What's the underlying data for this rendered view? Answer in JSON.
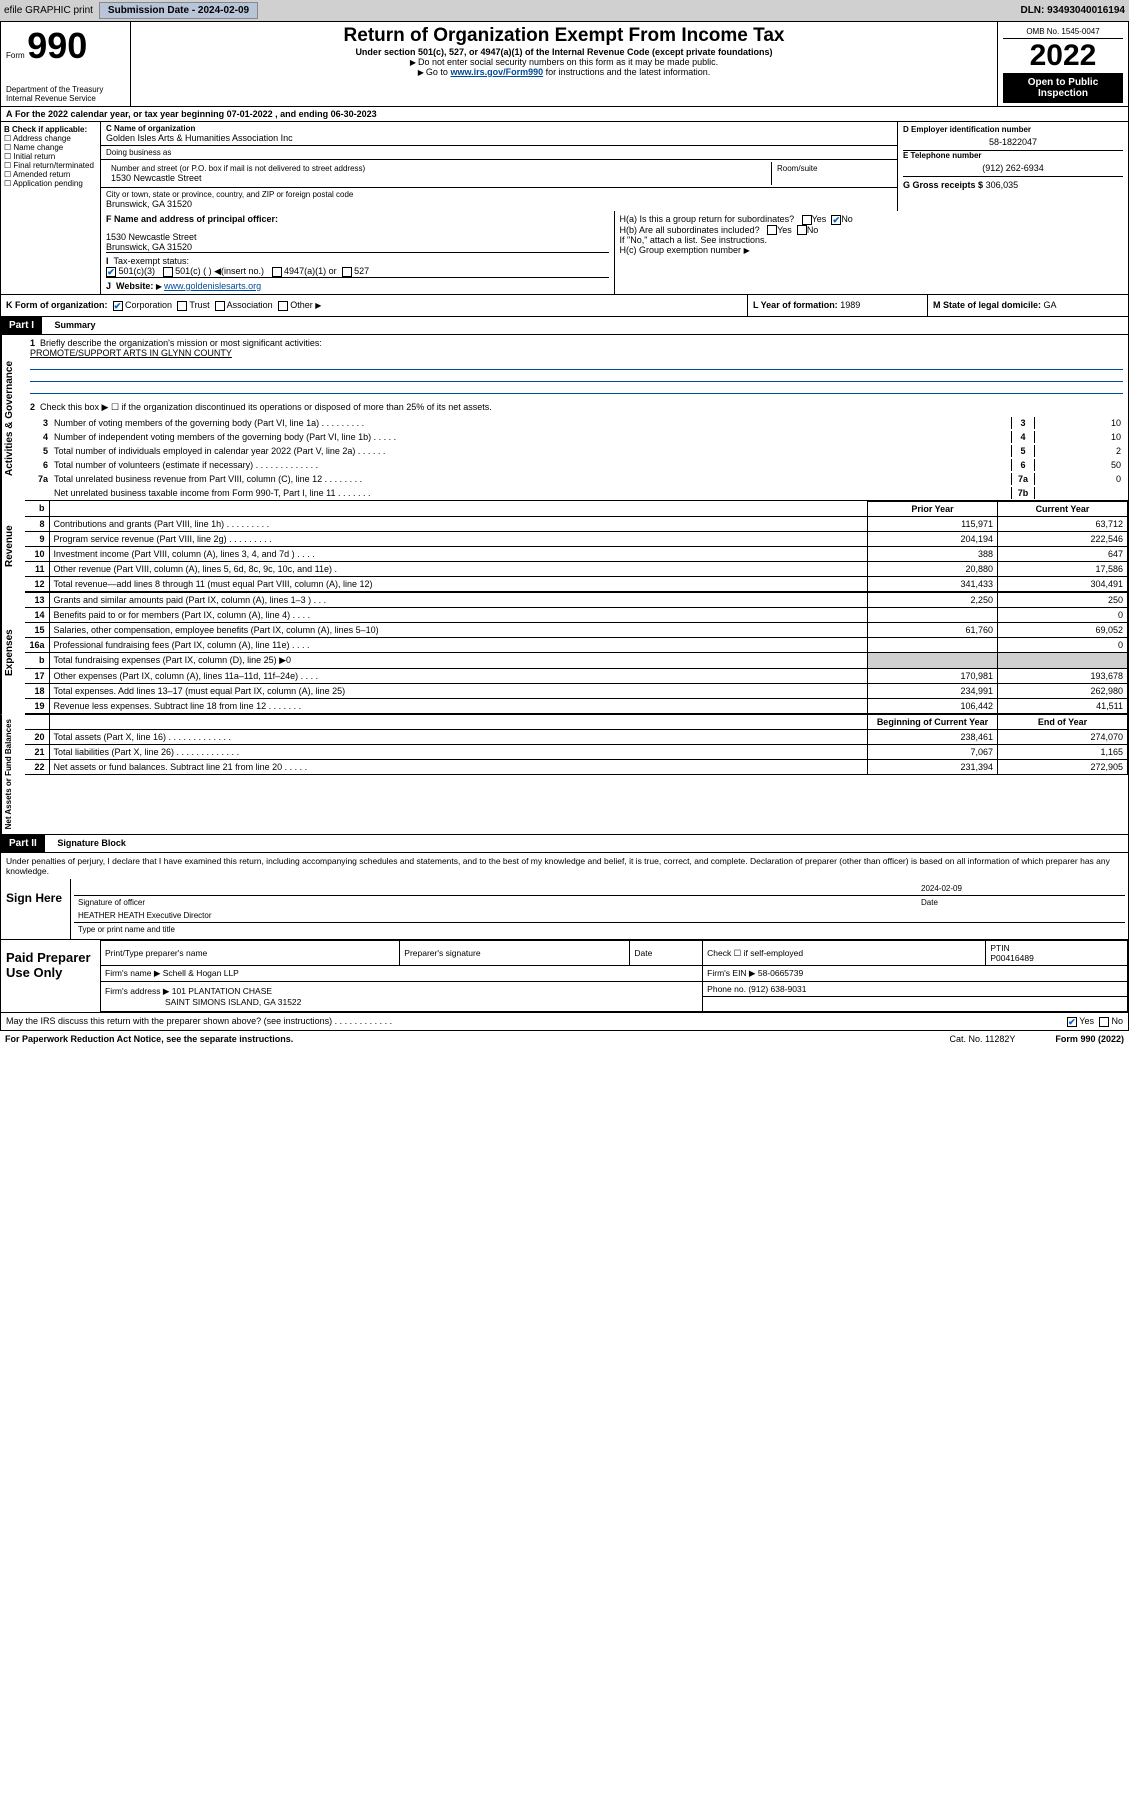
{
  "topbar": {
    "efile_label": "efile GRAPHIC print",
    "submission_label": "Submission Date - 2024-02-09",
    "dln": "DLN: 93493040016194"
  },
  "header": {
    "form_prefix": "Form",
    "form_number": "990",
    "dept": "Department of the Treasury",
    "irs": "Internal Revenue Service",
    "title": "Return of Organization Exempt From Income Tax",
    "subtitle": "Under section 501(c), 527, or 4947(a)(1) of the Internal Revenue Code (except private foundations)",
    "note1": "Do not enter social security numbers on this form as it may be made public.",
    "note2_pre": "Go to ",
    "note2_link": "www.irs.gov/Form990",
    "note2_post": " for instructions and the latest information.",
    "omb": "OMB No. 1545-0047",
    "year": "2022",
    "open_public": "Open to Public Inspection"
  },
  "row_a": "For the 2022 calendar year, or tax year beginning 07-01-2022   , and ending 06-30-2023",
  "col_b": {
    "header": "B Check if applicable:",
    "opts": [
      "Address change",
      "Name change",
      "Initial return",
      "Final return/terminated",
      "Amended return",
      "Application pending"
    ]
  },
  "col_c": {
    "name_label": "C Name of organization",
    "name": "Golden Isles Arts & Humanities Association Inc",
    "dba_label": "Doing business as",
    "dba": "",
    "addr_label": "Number and street (or P.O. box if mail is not delivered to street address)",
    "room_label": "Room/suite",
    "addr": "1530 Newcastle Street",
    "city_label": "City or town, state or province, country, and ZIP or foreign postal code",
    "city": "Brunswick, GA  31520"
  },
  "col_d": {
    "ein_label": "D Employer identification number",
    "ein": "58-1822047",
    "phone_label": "E Telephone number",
    "phone": "(912) 262-6934",
    "gross_label": "G Gross receipts $",
    "gross": "306,035"
  },
  "section_f": {
    "f_label": "F Name and address of principal officer:",
    "f_addr1": "1530 Newcastle Street",
    "f_addr2": "Brunswick, GA  31520",
    "i_label": "Tax-exempt status:",
    "i_501c3": "501(c)(3)",
    "i_501c": "501(c) (   )",
    "i_insert": "(insert no.)",
    "i_4947": "4947(a)(1) or",
    "i_527": "527",
    "j_label": "Website:",
    "j_val": "www.goldenislesarts.org",
    "ha_label": "H(a)  Is this a group return for subordinates?",
    "hb_label": "H(b)  Are all subordinates included?",
    "hb_note": "If \"No,\" attach a list. See instructions.",
    "hc_label": "H(c)  Group exemption number",
    "yes": "Yes",
    "no": "No"
  },
  "row_k": {
    "k_label": "K Form of organization:",
    "k_corp": "Corporation",
    "k_trust": "Trust",
    "k_assoc": "Association",
    "k_other": "Other",
    "l_label": "L Year of formation:",
    "l_val": "1989",
    "m_label": "M State of legal domicile:",
    "m_val": "GA"
  },
  "part1": {
    "header": "Part I",
    "title": "Summary",
    "briefly_num": "1",
    "briefly": "Briefly describe the organization's mission or most significant activities:",
    "mission": "PROMOTE/SUPPORT ARTS IN GLYNN COUNTY",
    "line2_num": "2",
    "line2": "Check this box ▶ ☐  if the organization discontinued its operations or disposed of more than 25% of its net assets.",
    "gov_lines": [
      {
        "n": "3",
        "t": "Number of voting members of the governing body (Part VI, line 1a)   .    .    .    .    .    .    .    .    .",
        "b": "3",
        "v": "10"
      },
      {
        "n": "4",
        "t": "Number of independent voting members of the governing body (Part VI, line 1b)   .    .    .    .    .",
        "b": "4",
        "v": "10"
      },
      {
        "n": "5",
        "t": "Total number of individuals employed in calendar year 2022 (Part V, line 2a)   .    .    .    .    .    .",
        "b": "5",
        "v": "2"
      },
      {
        "n": "6",
        "t": "Total number of volunteers (estimate if necessary)   .    .    .    .    .    .    .    .    .    .    .    .    .",
        "b": "6",
        "v": "50"
      },
      {
        "n": "7a",
        "t": "Total unrelated business revenue from Part VIII, column (C), line 12   .    .    .    .    .    .    .    .",
        "b": "7a",
        "v": "0"
      },
      {
        "n": "",
        "t": "Net unrelated business taxable income from Form 990-T, Part I, line 11   .    .    .    .    .    .    .",
        "b": "7b",
        "v": ""
      }
    ],
    "prior_year": "Prior Year",
    "current_year": "Current Year",
    "begin_year": "Beginning of Current Year",
    "end_year": "End of Year",
    "vlabels": {
      "gov": "Activities & Governance",
      "rev": "Revenue",
      "exp": "Expenses",
      "net": "Net Assets or Fund Balances"
    },
    "rev_lines": [
      {
        "n": "8",
        "t": "Contributions and grants (Part VIII, line 1h)   .    .    .    .    .    .    .    .    .",
        "py": "115,971",
        "cy": "63,712"
      },
      {
        "n": "9",
        "t": "Program service revenue (Part VIII, line 2g)   .    .    .    .    .    .    .    .    .",
        "py": "204,194",
        "cy": "222,546"
      },
      {
        "n": "10",
        "t": "Investment income (Part VIII, column (A), lines 3, 4, and 7d )   .    .    .    .",
        "py": "388",
        "cy": "647"
      },
      {
        "n": "11",
        "t": "Other revenue (Part VIII, column (A), lines 5, 6d, 8c, 9c, 10c, and 11e)   .",
        "py": "20,880",
        "cy": "17,586"
      },
      {
        "n": "12",
        "t": "Total revenue—add lines 8 through 11 (must equal Part VIII, column (A), line 12)",
        "py": "341,433",
        "cy": "304,491"
      }
    ],
    "exp_lines": [
      {
        "n": "13",
        "t": "Grants and similar amounts paid (Part IX, column (A), lines 1–3 )   .    .    .",
        "py": "2,250",
        "cy": "250"
      },
      {
        "n": "14",
        "t": "Benefits paid to or for members (Part IX, column (A), line 4)   .    .    .    .",
        "py": "",
        "cy": "0"
      },
      {
        "n": "15",
        "t": "Salaries, other compensation, employee benefits (Part IX, column (A), lines 5–10)",
        "py": "61,760",
        "cy": "69,052"
      },
      {
        "n": "16a",
        "t": "Professional fundraising fees (Part IX, column (A), line 11e)   .    .    .    .",
        "py": "",
        "cy": "0"
      },
      {
        "n": "b",
        "t": "Total fundraising expenses (Part IX, column (D), line 25) ▶0",
        "py": "grey",
        "cy": "grey"
      },
      {
        "n": "17",
        "t": "Other expenses (Part IX, column (A), lines 11a–11d, 11f–24e)   .    .    .    .",
        "py": "170,981",
        "cy": "193,678"
      },
      {
        "n": "18",
        "t": "Total expenses. Add lines 13–17 (must equal Part IX, column (A), line 25)",
        "py": "234,991",
        "cy": "262,980"
      },
      {
        "n": "19",
        "t": "Revenue less expenses. Subtract line 18 from line 12   .    .    .    .    .    .    .",
        "py": "106,442",
        "cy": "41,511"
      }
    ],
    "net_lines": [
      {
        "n": "20",
        "t": "Total assets (Part X, line 16)   .    .    .    .    .    .    .    .    .    .    .    .    .",
        "py": "238,461",
        "cy": "274,070"
      },
      {
        "n": "21",
        "t": "Total liabilities (Part X, line 26)   .    .    .    .    .    .    .    .    .    .    .    .    .",
        "py": "7,067",
        "cy": "1,165"
      },
      {
        "n": "22",
        "t": "Net assets or fund balances. Subtract line 21 from line 20   .    .    .    .    .",
        "py": "231,394",
        "cy": "272,905"
      }
    ]
  },
  "part2": {
    "header": "Part II",
    "title": "Signature Block",
    "declaration": "Under penalties of perjury, I declare that I have examined this return, including accompanying schedules and statements, and to the best of my knowledge and belief, it is true, correct, and complete. Declaration of preparer (other than officer) is based on all information of which preparer has any knowledge.",
    "sign_here": "Sign Here",
    "sig_officer": "Signature of officer",
    "sig_date": "Date",
    "sig_date_val": "2024-02-09",
    "officer_name": "HEATHER HEATH  Executive Director",
    "type_name": "Type or print name and title",
    "paid_prep": "Paid Preparer Use Only",
    "print_name": "Print/Type preparer's name",
    "prep_sig": "Preparer's signature",
    "date": "Date",
    "check_if": "Check ☐ if self-employed",
    "ptin_label": "PTIN",
    "ptin": "P00416489",
    "firm_name_label": "Firm's name   ▶",
    "firm_name": "Schell & Hogan LLP",
    "firm_ein_label": "Firm's EIN ▶",
    "firm_ein": "58-0665739",
    "firm_addr_label": "Firm's address ▶",
    "firm_addr1": "101 PLANTATION CHASE",
    "firm_addr2": "SAINT SIMONS ISLAND, GA  31522",
    "phone_label": "Phone no.",
    "phone": "(912) 638-9031",
    "discuss": "May the IRS discuss this return with the preparer shown above? (see instructions)   .    .    .    .    .    .    .    .    .    .    .    .",
    "paperwork": "For Paperwork Reduction Act Notice, see the separate instructions.",
    "catno": "Cat. No. 11282Y",
    "formno": "Form 990 (2022)"
  }
}
